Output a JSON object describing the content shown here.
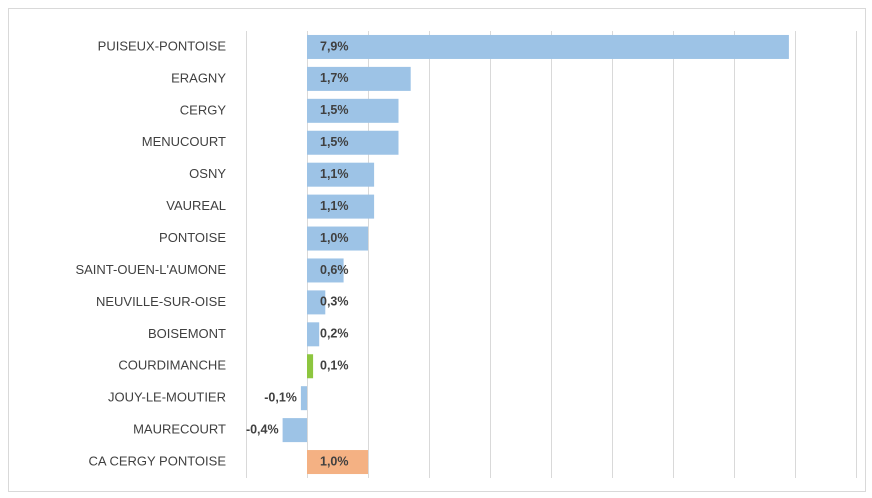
{
  "chart_data": {
    "type": "barh",
    "categories": [
      "PUISEUX-PONTOISE",
      "ERAGNY",
      "CERGY",
      "MENUCOURT",
      "OSNY",
      "VAUREAL",
      "PONTOISE",
      "SAINT-OUEN-L'AUMONE",
      "NEUVILLE-SUR-OISE",
      "BOISEMONT",
      "COURDIMANCHE",
      "JOUY-LE-MOUTIER",
      "MAURECOURT",
      "CA CERGY PONTOISE"
    ],
    "values": [
      7.9,
      1.7,
      1.5,
      1.5,
      1.1,
      1.1,
      1.0,
      0.6,
      0.3,
      0.2,
      0.1,
      -0.1,
      -0.4,
      1.0
    ],
    "value_labels": [
      "7,9%",
      "1,7%",
      "1,5%",
      "1,5%",
      "1,1%",
      "1,1%",
      "1,0%",
      "0,6%",
      "0,3%",
      "0,2%",
      "0,1%",
      "-0,1%",
      "-0,4%",
      "1,0%"
    ],
    "colors": [
      "#9dc3e6",
      "#9dc3e6",
      "#9dc3e6",
      "#9dc3e6",
      "#9dc3e6",
      "#9dc3e6",
      "#9dc3e6",
      "#9dc3e6",
      "#9dc3e6",
      "#9dc3e6",
      "#8dc63f",
      "#9dc3e6",
      "#9dc3e6",
      "#f4b183"
    ],
    "xlim": [
      -1,
      9
    ],
    "xticks": [
      -1,
      0,
      1,
      2,
      3,
      4,
      5,
      6,
      7,
      8,
      9
    ],
    "grid": true
  }
}
